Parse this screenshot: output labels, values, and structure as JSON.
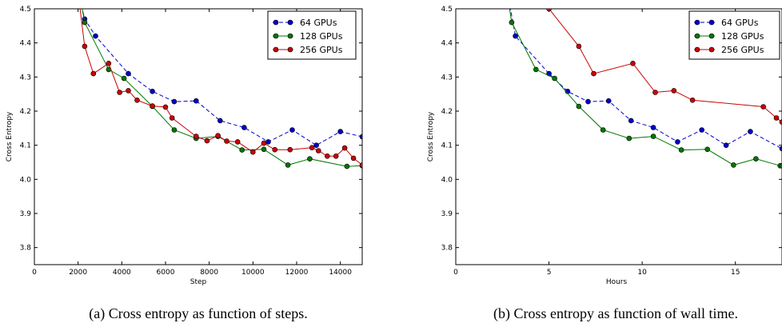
{
  "chart_data": [
    {
      "type": "line",
      "caption": "(a) Cross entropy as function of steps.",
      "xlabel": "Step",
      "ylabel": "Cross Entropy",
      "xlim": [
        0,
        15000
      ],
      "ylim": [
        3.75,
        4.5
      ],
      "xticks": [
        0,
        2000,
        4000,
        6000,
        8000,
        10000,
        12000,
        14000
      ],
      "yticks": [
        3.8,
        3.9,
        4.0,
        4.1,
        4.2,
        4.3,
        4.4,
        4.5
      ],
      "grid": false,
      "legend": "top-right",
      "series": [
        {
          "name": "64 GPUs",
          "color": "#0000cc",
          "dashed": true,
          "points": [
            [
              1800,
              4.6
            ],
            [
              2300,
              4.47
            ],
            [
              2800,
              4.42
            ],
            [
              4300,
              4.31
            ],
            [
              5400,
              4.258
            ],
            [
              6400,
              4.228
            ],
            [
              7400,
              4.23
            ],
            [
              8500,
              4.172
            ],
            [
              9600,
              4.152
            ],
            [
              10700,
              4.11
            ],
            [
              11800,
              4.145
            ],
            [
              12900,
              4.1
            ],
            [
              14000,
              4.14
            ],
            [
              15000,
              4.125
            ]
          ]
        },
        {
          "name": "128 GPUs",
          "color": "#007700",
          "dashed": false,
          "points": [
            [
              1900,
              4.6
            ],
            [
              2300,
              4.46
            ],
            [
              3400,
              4.322
            ],
            [
              4100,
              4.296
            ],
            [
              5400,
              4.214
            ],
            [
              6400,
              4.145
            ],
            [
              7400,
              4.12
            ],
            [
              8400,
              4.126
            ],
            [
              9500,
              4.086
            ],
            [
              10500,
              4.088
            ],
            [
              11600,
              4.042
            ],
            [
              12600,
              4.06
            ],
            [
              14300,
              4.038
            ],
            [
              15000,
              4.04
            ]
          ]
        },
        {
          "name": "256 GPUs",
          "color": "#cc0000",
          "dashed": false,
          "points": [
            [
              1900,
              4.6
            ],
            [
              2300,
              4.39
            ],
            [
              2700,
              4.31
            ],
            [
              3400,
              4.34
            ],
            [
              3900,
              4.255
            ],
            [
              4300,
              4.26
            ],
            [
              4700,
              4.232
            ],
            [
              5400,
              4.215
            ],
            [
              6000,
              4.212
            ],
            [
              6300,
              4.18
            ],
            [
              7400,
              4.126
            ],
            [
              7900,
              4.113
            ],
            [
              8400,
              4.128
            ],
            [
              8800,
              4.112
            ],
            [
              9300,
              4.11
            ],
            [
              10000,
              4.08
            ],
            [
              10500,
              4.106
            ],
            [
              11000,
              4.087
            ],
            [
              11700,
              4.087
            ],
            [
              12700,
              4.093
            ],
            [
              13000,
              4.084
            ],
            [
              13400,
              4.068
            ],
            [
              13800,
              4.068
            ],
            [
              14200,
              4.092
            ],
            [
              14600,
              4.062
            ],
            [
              15000,
              4.042
            ]
          ]
        }
      ]
    },
    {
      "type": "line",
      "caption": "(b) Cross entropy as function of wall time.",
      "xlabel": "Hours",
      "ylabel": "Cross Entropy",
      "xlim": [
        0,
        17.5
      ],
      "ylim": [
        3.75,
        4.5
      ],
      "xticks": [
        0,
        5,
        10,
        15
      ],
      "yticks": [
        3.8,
        3.9,
        4.0,
        4.1,
        4.2,
        4.3,
        4.4,
        4.5
      ],
      "grid": false,
      "legend": "top-right",
      "series": [
        {
          "name": "64 GPUs",
          "color": "#0000cc",
          "dashed": true,
          "points": [
            [
              2.6,
              4.6
            ],
            [
              3.2,
              4.42
            ],
            [
              5.0,
              4.31
            ],
            [
              6.0,
              4.258
            ],
            [
              7.1,
              4.228
            ],
            [
              8.2,
              4.23
            ],
            [
              9.4,
              4.172
            ],
            [
              10.6,
              4.152
            ],
            [
              11.9,
              4.11
            ],
            [
              13.2,
              4.145
            ],
            [
              14.5,
              4.1
            ],
            [
              15.8,
              4.14
            ],
            [
              17.5,
              4.09
            ]
          ]
        },
        {
          "name": "128 GPUs",
          "color": "#007700",
          "dashed": false,
          "points": [
            [
              2.6,
              4.6
            ],
            [
              3.0,
              4.46
            ],
            [
              4.3,
              4.322
            ],
            [
              5.3,
              4.296
            ],
            [
              6.6,
              4.214
            ],
            [
              7.9,
              4.145
            ],
            [
              9.3,
              4.12
            ],
            [
              10.6,
              4.126
            ],
            [
              12.1,
              4.086
            ],
            [
              13.5,
              4.088
            ],
            [
              14.9,
              4.042
            ],
            [
              16.1,
              4.06
            ],
            [
              17.4,
              4.04
            ],
            [
              17.5,
              4.04
            ]
          ]
        },
        {
          "name": "256 GPUs",
          "color": "#cc0000",
          "dashed": false,
          "points": [
            [
              4.6,
              4.55
            ],
            [
              5.0,
              4.5
            ],
            [
              6.6,
              4.39
            ],
            [
              7.4,
              4.31
            ],
            [
              9.5,
              4.34
            ],
            [
              10.7,
              4.255
            ],
            [
              11.7,
              4.26
            ],
            [
              12.7,
              4.232
            ],
            [
              16.5,
              4.213
            ],
            [
              17.2,
              4.18
            ],
            [
              17.5,
              4.168
            ]
          ]
        }
      ]
    }
  ]
}
